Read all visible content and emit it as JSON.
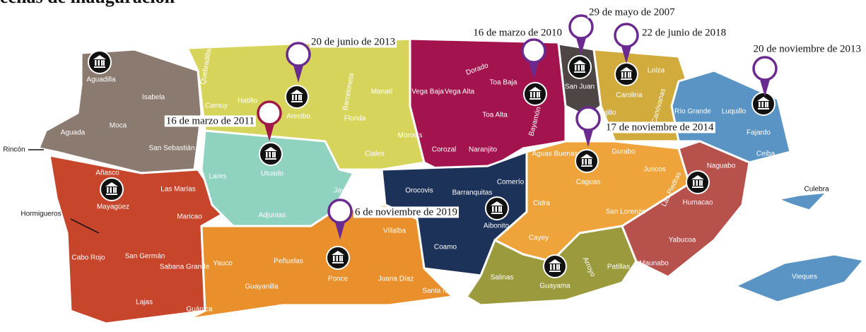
{
  "header": {
    "title": "echas de inauguración"
  },
  "municipalities": [
    "Aguadilla",
    "Isabela",
    "Quebradillas",
    "Camuy",
    "Hatillo",
    "Arecibo",
    "Barceloneta",
    "Florida",
    "Manatí",
    "Vega Baja",
    "Vega Alta",
    "Dorado",
    "Toa Baja",
    "Toa Alta",
    "Bayamón",
    "San Juan",
    "Carolina",
    "Loíza",
    "Trujillo",
    "Canóvanas",
    "Río Grande",
    "Luquillo",
    "Fajardo",
    "Ceiba",
    "Aguada",
    "Moca",
    "San Sebastián",
    "Rincón",
    "Lares",
    "Utuado",
    "Jayuya",
    "Adjuntas",
    "Ciales",
    "Morovis",
    "Corozal",
    "Naranjito",
    "Orocovis",
    "Barranquitas",
    "Comerío",
    "Aguas Buenas",
    "Caguas",
    "Gurabo",
    "Juncos",
    "Las Piedras",
    "Naguabo",
    "Humacao",
    "Culebra",
    "Añasco",
    "Mayagüez",
    "Las Marías",
    "Maricao",
    "Hormigueros",
    "San Germán",
    "Sabana Grande",
    "Cabo Rojo",
    "Lajas",
    "Guánica",
    "Yauco",
    "Guayanilla",
    "Peñuelas",
    "Ponce",
    "Villalba",
    "Juana Díaz",
    "Santa Isabel",
    "Coamo",
    "Aibonito",
    "Cidra",
    "San Lorenzo",
    "Cayey",
    "Salinas",
    "Guayama",
    "Arroyo",
    "Patillas",
    "Yabucoa",
    "Maunabo",
    "Vieques"
  ],
  "pins": [
    {
      "date": "20 de junio de 2013"
    },
    {
      "date": "16 de marzo de 2011"
    },
    {
      "date": "16 de marzo de 2010"
    },
    {
      "date": "29 de mayo de 2007"
    },
    {
      "date": "22 de junio de 2018"
    },
    {
      "date": "20 de noviembre de 2013"
    },
    {
      "date": "17 de noviembre de 2014"
    },
    {
      "date": "6 de noviembre de 2019"
    }
  ]
}
